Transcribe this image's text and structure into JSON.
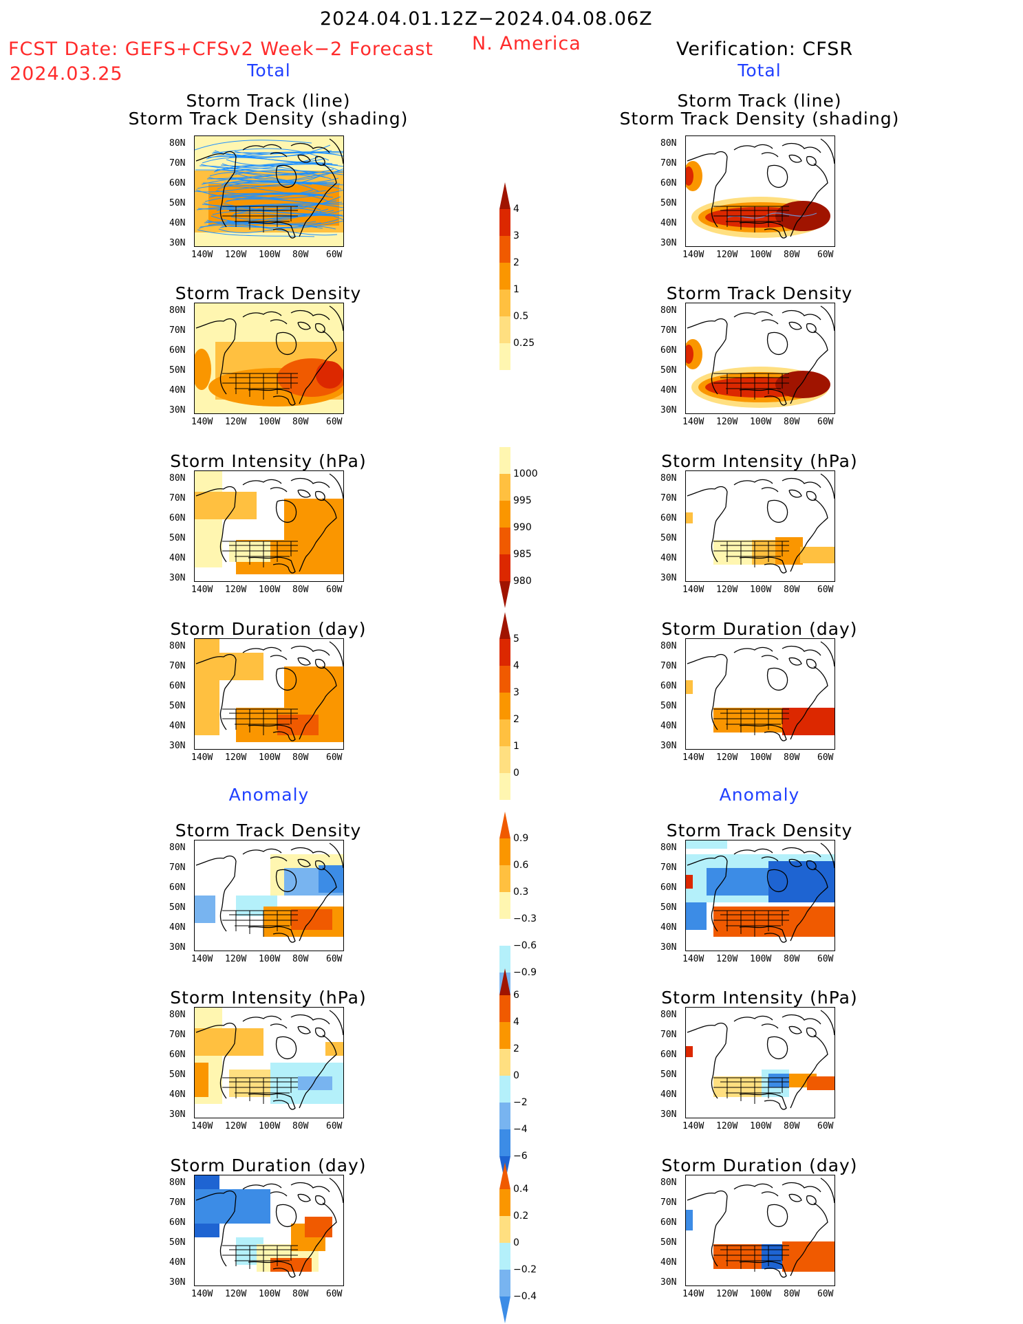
{
  "header": {
    "title": "2024.04.01.12Z−2024.04.08.06Z",
    "fcst_label": "FCST Date: GEFS+CFSv2 Week−2 Forecast",
    "fcst_date": "2024.03.25",
    "region": "N. America",
    "verification": "Verification: CFSR"
  },
  "sections": {
    "total_left": "Total",
    "total_right": "Total",
    "anomaly_left": "Anomaly",
    "anomaly_right": "Anomaly"
  },
  "panel_titles": {
    "track_line": "Storm Track (line)",
    "track_shading": "Storm Track Density (shading)",
    "density": "Storm Track Density",
    "intensity": "Storm Intensity (hPa)",
    "duration": "Storm Duration (day)"
  },
  "axes": {
    "lat": [
      "80N",
      "70N",
      "60N",
      "50N",
      "40N",
      "30N"
    ],
    "lon": [
      "140W",
      "120W",
      "100W",
      "80W",
      "60W"
    ]
  },
  "colorbars": {
    "density": [
      "4",
      "3",
      "2",
      "1",
      "0.5",
      "0.25"
    ],
    "intensity": [
      "1000",
      "995",
      "990",
      "985",
      "980"
    ],
    "duration": [
      "5",
      "4",
      "3",
      "2",
      "1",
      "0"
    ],
    "density_anom": [
      "0.9",
      "0.6",
      "0.3",
      "−0.3",
      "−0.6",
      "−0.9"
    ],
    "intensity_anom": [
      "6",
      "4",
      "2",
      "0",
      "−2",
      "−4",
      "−6"
    ],
    "duration_anom": [
      "0.4",
      "0.2",
      "0",
      "−0.2",
      "−0.4"
    ]
  },
  "colors": {
    "light_yellow": "#fff6b0",
    "yellow": "#ffdf80",
    "orange_light": "#ffc040",
    "orange": "#fa9600",
    "red_orange": "#f05a00",
    "red": "#dc2800",
    "dark_red": "#a01400",
    "light_blue": "#b4f0fa",
    "mid_blue": "#78b4f0",
    "blue": "#3c8ce6",
    "dark_blue": "#1e64d2",
    "track_line": "#1e90ff"
  }
}
